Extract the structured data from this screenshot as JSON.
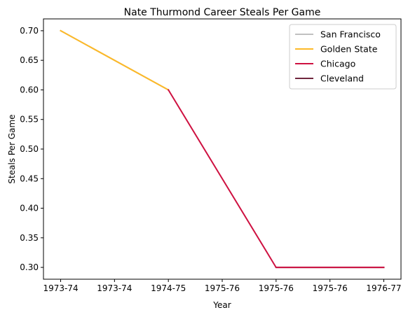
{
  "chart_data": {
    "type": "line",
    "title": "Nate Thurmond Career Steals Per Game",
    "xlabel": "Year",
    "ylabel": "Steals Per Game",
    "categories": [
      "1973-74",
      "1973-74",
      "1974-75",
      "1975-76",
      "1975-76",
      "1975-76",
      "1976-77"
    ],
    "ylim": [
      0.28,
      0.72
    ],
    "yticks": [
      "0.30",
      "0.35",
      "0.40",
      "0.45",
      "0.50",
      "0.55",
      "0.60",
      "0.65",
      "0.70"
    ],
    "grid": false,
    "legend_position": "top-right",
    "series": [
      {
        "name": "San Francisco",
        "color": "#c0c0c0",
        "points": [
          [
            0,
            0.7
          ],
          [
            2,
            0.6
          ]
        ]
      },
      {
        "name": "Golden State",
        "color": "#fdb927",
        "points": [
          [
            0,
            0.7
          ],
          [
            2,
            0.6
          ]
        ]
      },
      {
        "name": "Chicago",
        "color": "#ce1141",
        "points": [
          [
            2,
            0.6
          ],
          [
            4,
            0.3
          ],
          [
            6,
            0.3
          ]
        ]
      },
      {
        "name": "Cleveland",
        "color": "#6f263d",
        "points": [
          [
            4,
            0.3
          ],
          [
            6,
            0.3
          ]
        ]
      }
    ],
    "draw_order": [
      0,
      1,
      3,
      2
    ]
  }
}
